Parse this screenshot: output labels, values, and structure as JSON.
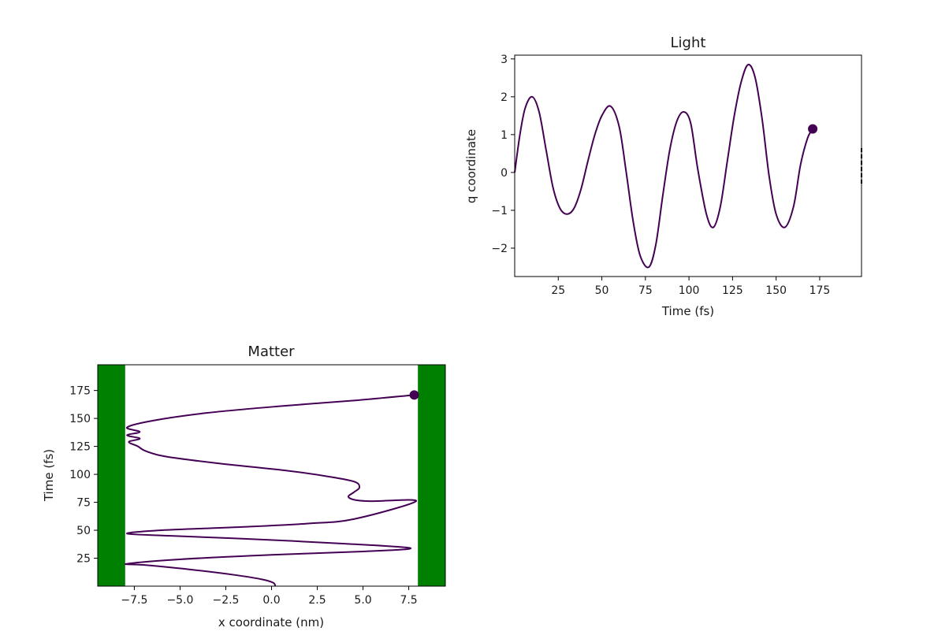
{
  "colors": {
    "line": "#440154",
    "wall": "#008000",
    "axis": "#000000",
    "background": "#ffffff"
  },
  "chart_data": [
    {
      "type": "line",
      "title": "Light",
      "xlabel": "Time (fs)",
      "ylabel": "q coordinate",
      "xlim": [
        0,
        199
      ],
      "ylim": [
        -2.75,
        3.1
      ],
      "xticks": [
        25,
        50,
        75,
        100,
        125,
        150,
        175
      ],
      "yticks": [
        -2,
        -1,
        0,
        1,
        2,
        3
      ],
      "grid": false,
      "series": [
        {
          "x": [
            0,
            3,
            6,
            10,
            14,
            18,
            22,
            26,
            30,
            34,
            38,
            42,
            46,
            50,
            55,
            60,
            64,
            68,
            72,
            77,
            81,
            85,
            89,
            93,
            97,
            101,
            105,
            110,
            114,
            118,
            122,
            126,
            130,
            134,
            138,
            142,
            146,
            150,
            155,
            160,
            164,
            168,
            171
          ],
          "y": [
            0.0,
            1.0,
            1.7,
            2.0,
            1.6,
            0.6,
            -0.4,
            -0.95,
            -1.1,
            -0.95,
            -0.45,
            0.3,
            1.0,
            1.5,
            1.75,
            1.2,
            0.0,
            -1.3,
            -2.2,
            -2.5,
            -1.9,
            -0.6,
            0.6,
            1.35,
            1.6,
            1.3,
            0.1,
            -1.1,
            -1.45,
            -0.9,
            0.3,
            1.5,
            2.4,
            2.85,
            2.5,
            1.4,
            -0.1,
            -1.1,
            -1.45,
            -0.9,
            0.2,
            0.9,
            1.15
          ]
        }
      ],
      "marker": {
        "x": 171,
        "y": 1.15
      }
    },
    {
      "type": "line",
      "title": "Matter",
      "xlabel": "x coordinate (nm)",
      "ylabel": "Time (fs)",
      "xlim": [
        -9.5,
        9.5
      ],
      "ylim": [
        0,
        198
      ],
      "xticks": [
        -7.5,
        -5.0,
        -2.5,
        0.0,
        2.5,
        5.0,
        7.5
      ],
      "xtick_labels": [
        "−7.5",
        "−5.0",
        "−2.5",
        "0.0",
        "2.5",
        "5.0",
        "7.5"
      ],
      "yticks": [
        25,
        50,
        75,
        100,
        125,
        150,
        175
      ],
      "walls": [
        [
          -9.5,
          -8.0
        ],
        [
          8.0,
          9.5
        ]
      ],
      "grid": false,
      "series": [
        {
          "x": [
            0.2,
            0.1,
            -0.5,
            -2.0,
            -4.5,
            -7.0,
            -7.9,
            -5.0,
            0.0,
            5.0,
            7.6,
            4.0,
            -1.0,
            -5.5,
            -7.9,
            -6.0,
            -1.5,
            2.0,
            4.5,
            7.9,
            5.5,
            4.6,
            4.2,
            4.5,
            4.8,
            4.6,
            3.5,
            1.0,
            -3.0,
            -5.8,
            -6.9,
            -7.3,
            -7.8,
            -7.2,
            -7.9,
            -7.2,
            -7.9,
            -6.5,
            -3.5,
            0.5,
            4.5,
            7.8
          ],
          "y": [
            0,
            3,
            6,
            10,
            15,
            19,
            20,
            24,
            28,
            31,
            34,
            38,
            42,
            45,
            47,
            50,
            53,
            56,
            60,
            76,
            76,
            77,
            80,
            84,
            88,
            93,
            97,
            103,
            110,
            116,
            121,
            125,
            129,
            132,
            135,
            138,
            142,
            148,
            155,
            161,
            166,
            171
          ]
        }
      ],
      "marker": {
        "x": 7.8,
        "y": 171
      }
    }
  ]
}
